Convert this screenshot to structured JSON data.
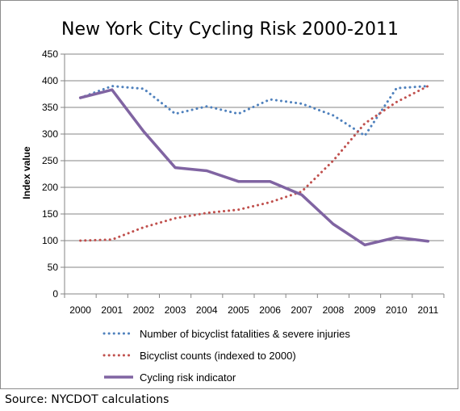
{
  "chart_data": {
    "type": "line",
    "title": "New York City Cycling Risk 2000-2011",
    "xlabel": "",
    "ylabel": "Index value",
    "x": [
      "2000",
      "2001",
      "2002",
      "2003",
      "2004",
      "2005",
      "2006",
      "2007",
      "2008",
      "2009",
      "2010",
      "2011"
    ],
    "ylim": [
      0,
      450
    ],
    "yticks": [
      "0",
      "50",
      "100",
      "150",
      "200",
      "250",
      "300",
      "350",
      "400",
      "450"
    ],
    "grid": true,
    "legend_position": "bottom",
    "series": [
      {
        "name": "Number of bicyclist fatalities & severe injuries",
        "style": "dotted",
        "color": "#4f81bd",
        "values": [
          368,
          390,
          385,
          338,
          352,
          338,
          365,
          357,
          335,
          297,
          386,
          390
        ]
      },
      {
        "name": "Bicyclist counts (indexed to 2000)",
        "style": "dotted",
        "color": "#c0504d",
        "values": [
          100,
          102,
          125,
          142,
          152,
          158,
          172,
          192,
          250,
          320,
          360,
          390
        ]
      },
      {
        "name": "Cycling risk indicator",
        "style": "solid",
        "color": "#8064a2",
        "values": [
          368,
          383,
          305,
          237,
          231,
          211,
          211,
          186,
          131,
          92,
          106,
          99
        ]
      }
    ]
  },
  "source_note": "Source:  NYCDOT calculations"
}
